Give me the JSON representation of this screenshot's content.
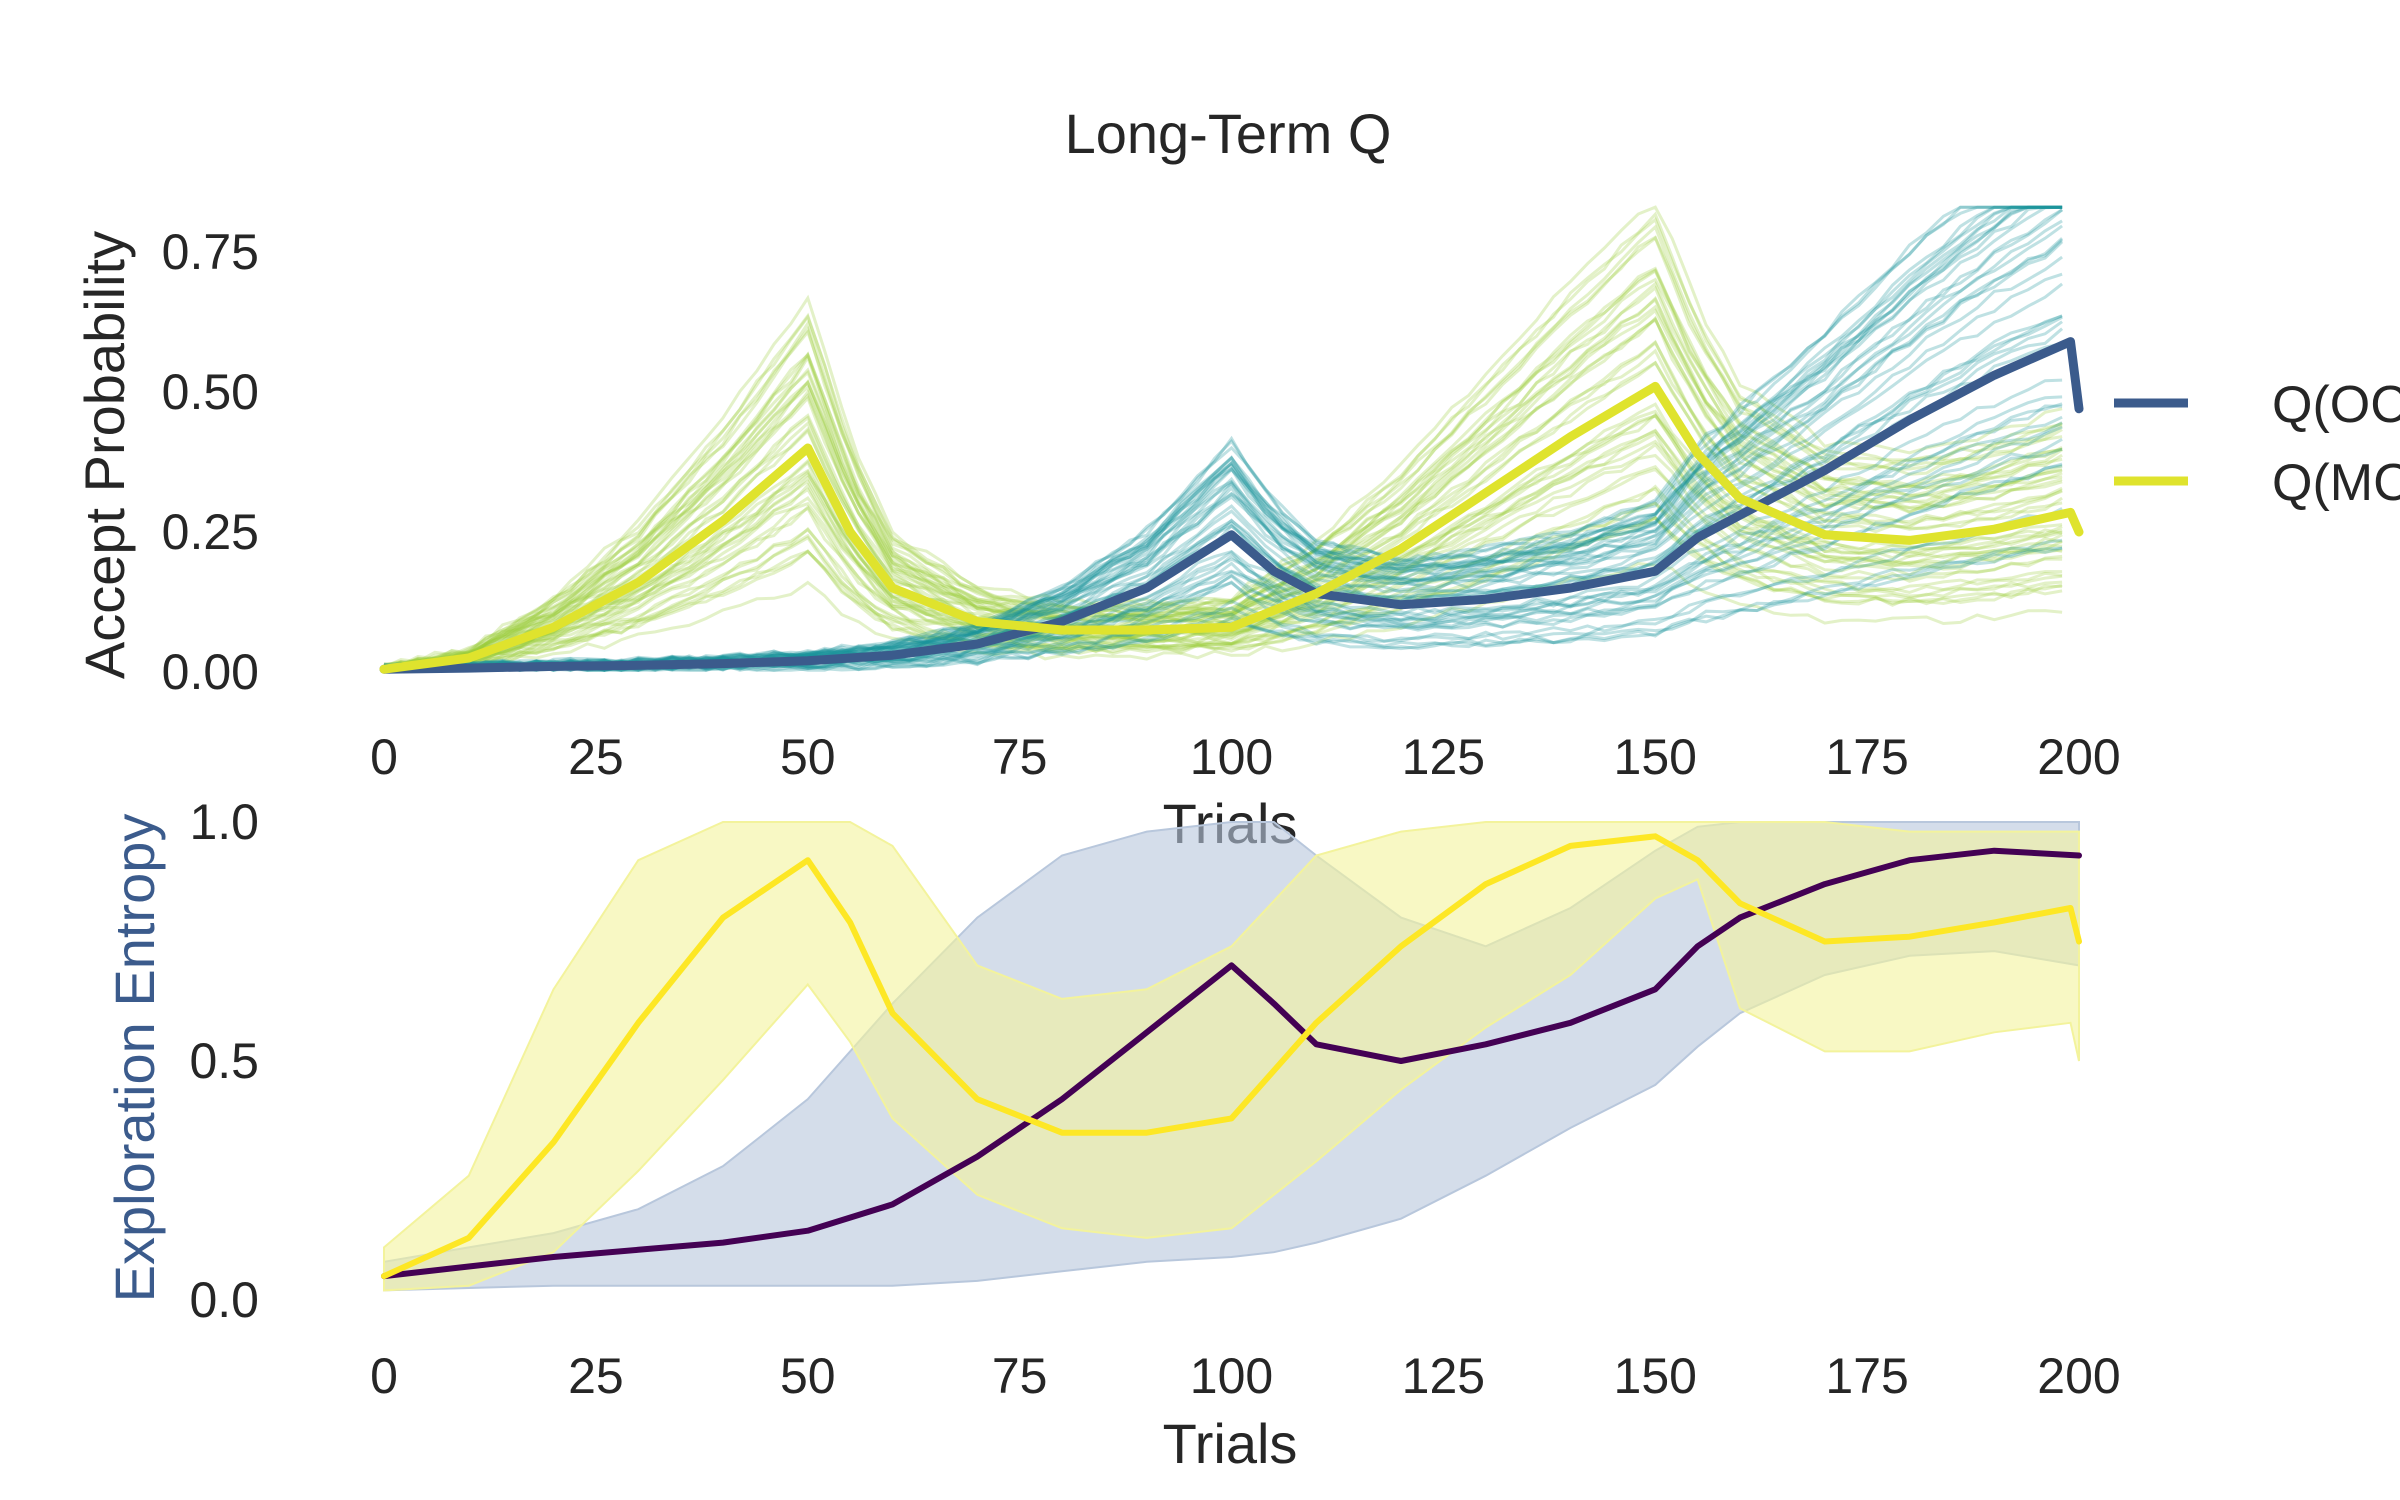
{
  "chart_data": [
    {
      "type": "line",
      "title": "Long-Term Q",
      "xlabel": "Trials",
      "ylabel": "Accept Probability",
      "xlim": [
        0,
        200
      ],
      "ylim": [
        0,
        0.85
      ],
      "xticks": [
        "0",
        "25",
        "50",
        "75",
        "100",
        "125",
        "150",
        "175",
        "200"
      ],
      "yticks": [
        "0.00",
        "0.25",
        "0.50",
        "0.75"
      ],
      "grid": false,
      "legend_position": "right",
      "legend": [
        "Q(OC",
        "Q(MC"
      ],
      "series": [
        {
          "name": "Q(OC",
          "color": "#3b5b8c",
          "x": [
            0,
            10,
            20,
            30,
            40,
            50,
            60,
            70,
            80,
            90,
            100,
            105,
            110,
            120,
            130,
            140,
            150,
            155,
            160,
            170,
            180,
            190,
            199,
            200
          ],
          "values": [
            0.005,
            0.007,
            0.01,
            0.012,
            0.015,
            0.02,
            0.03,
            0.05,
            0.09,
            0.15,
            0.245,
            0.18,
            0.14,
            0.12,
            0.13,
            0.15,
            0.18,
            0.24,
            0.28,
            0.36,
            0.45,
            0.53,
            0.59,
            0.47
          ]
        },
        {
          "name": "Q(MC",
          "color": "#dfe32d",
          "x": [
            0,
            10,
            20,
            30,
            40,
            50,
            55,
            60,
            70,
            80,
            90,
            100,
            110,
            120,
            130,
            140,
            150,
            155,
            160,
            170,
            180,
            190,
            199,
            200
          ],
          "values": [
            0.005,
            0.025,
            0.08,
            0.16,
            0.27,
            0.4,
            0.25,
            0.15,
            0.09,
            0.075,
            0.075,
            0.08,
            0.14,
            0.22,
            0.32,
            0.42,
            0.51,
            0.39,
            0.31,
            0.245,
            0.235,
            0.255,
            0.285,
            0.25
          ]
        }
      ],
      "trace_colors": [
        "#9ccb3a",
        "#1a949c"
      ]
    },
    {
      "type": "area",
      "title": "",
      "xlabel": "Trials",
      "ylabel": "Exploration Entropy",
      "ylabel_color": "#3b5b8c",
      "xlim": [
        0,
        200
      ],
      "ylim": [
        0,
        1.0
      ],
      "xticks": [
        "0",
        "25",
        "50",
        "75",
        "100",
        "125",
        "150",
        "175",
        "200"
      ],
      "yticks": [
        "0.0",
        "0.5",
        "1.0"
      ],
      "grid": false,
      "series": [
        {
          "color": "#440154",
          "band_color": "#b8c7dc",
          "x": [
            0,
            10,
            20,
            30,
            40,
            50,
            60,
            70,
            80,
            90,
            100,
            105,
            110,
            120,
            130,
            140,
            150,
            155,
            160,
            170,
            180,
            190,
            200
          ],
          "values": [
            0.05,
            0.07,
            0.09,
            0.105,
            0.12,
            0.145,
            0.2,
            0.3,
            0.42,
            0.56,
            0.7,
            0.62,
            0.535,
            0.5,
            0.535,
            0.58,
            0.65,
            0.74,
            0.8,
            0.87,
            0.92,
            0.94,
            0.93
          ],
          "lower": [
            0.02,
            0.025,
            0.03,
            0.03,
            0.03,
            0.03,
            0.03,
            0.04,
            0.06,
            0.08,
            0.09,
            0.1,
            0.12,
            0.17,
            0.26,
            0.36,
            0.45,
            0.53,
            0.6,
            0.68,
            0.72,
            0.73,
            0.7
          ],
          "upper": [
            0.08,
            0.11,
            0.14,
            0.19,
            0.28,
            0.42,
            0.62,
            0.8,
            0.93,
            0.98,
            1.0,
            1.0,
            0.93,
            0.8,
            0.74,
            0.82,
            0.94,
            0.99,
            1.0,
            1.0,
            1.0,
            1.0,
            1.0
          ]
        },
        {
          "color": "#fde725",
          "band_color": "#f3f39c",
          "x": [
            0,
            10,
            20,
            30,
            40,
            50,
            55,
            60,
            70,
            80,
            90,
            100,
            110,
            120,
            130,
            140,
            150,
            155,
            160,
            170,
            180,
            190,
            199,
            200
          ],
          "values": [
            0.05,
            0.13,
            0.33,
            0.58,
            0.8,
            0.92,
            0.79,
            0.6,
            0.42,
            0.35,
            0.35,
            0.38,
            0.58,
            0.74,
            0.87,
            0.95,
            0.97,
            0.92,
            0.83,
            0.75,
            0.76,
            0.79,
            0.82,
            0.75
          ],
          "lower": [
            0.02,
            0.03,
            0.1,
            0.27,
            0.46,
            0.66,
            0.54,
            0.38,
            0.22,
            0.15,
            0.13,
            0.15,
            0.29,
            0.44,
            0.57,
            0.68,
            0.84,
            0.88,
            0.61,
            0.52,
            0.52,
            0.56,
            0.58,
            0.5
          ],
          "upper": [
            0.11,
            0.26,
            0.65,
            0.92,
            1.0,
            1.0,
            1.0,
            0.95,
            0.7,
            0.63,
            0.65,
            0.74,
            0.93,
            0.98,
            1.0,
            1.0,
            1.0,
            1.0,
            1.0,
            1.0,
            0.98,
            0.98,
            0.98,
            0.98
          ]
        }
      ]
    }
  ]
}
